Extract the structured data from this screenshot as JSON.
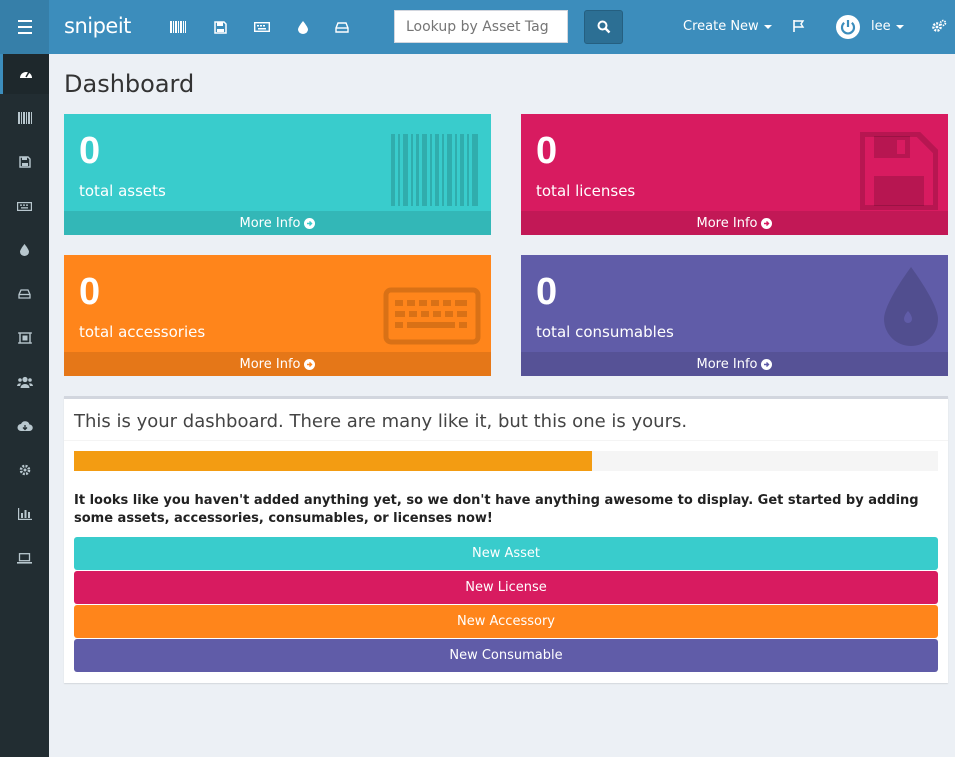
{
  "app": {
    "logo": "snipeit"
  },
  "search": {
    "placeholder": "Lookup by Asset Tag"
  },
  "nav": {
    "create_new": "Create New",
    "user": "lee"
  },
  "page": {
    "title": "Dashboard"
  },
  "stats": [
    {
      "value": "0",
      "label": "total assets",
      "more": "More Info",
      "color": "#39cccc",
      "icon": "barcode-icon"
    },
    {
      "value": "0",
      "label": "total licenses",
      "more": "More Info",
      "color": "#d81b60",
      "icon": "floppy-icon"
    },
    {
      "value": "0",
      "label": "total accessories",
      "more": "More Info",
      "color": "#ff851b",
      "icon": "keyboard-icon"
    },
    {
      "value": "0",
      "label": "total consumables",
      "more": "More Info",
      "color": "#605ca8",
      "icon": "tint-icon"
    }
  ],
  "welcome": {
    "title": "This is your dashboard. There are many like it, but this one is yours.",
    "progress": 0.6,
    "message": "It looks like you haven't added anything yet, so we don't have anything awesome to display. Get started by adding some assets, accessories, consumables, or licenses now!",
    "buttons": [
      {
        "label": "New Asset",
        "color": "#39cccc"
      },
      {
        "label": "New License",
        "color": "#d81b60"
      },
      {
        "label": "New Accessory",
        "color": "#ff851b"
      },
      {
        "label": "New Consumable",
        "color": "#605ca8"
      }
    ]
  },
  "sidebar": {
    "items": [
      "dashboard-icon",
      "barcode-icon",
      "floppy-icon",
      "keyboard-icon",
      "tint-icon",
      "drive-icon",
      "components-icon",
      "users-icon",
      "cloud-download-icon",
      "gear-icon",
      "reports-icon",
      "laptop-icon"
    ]
  }
}
